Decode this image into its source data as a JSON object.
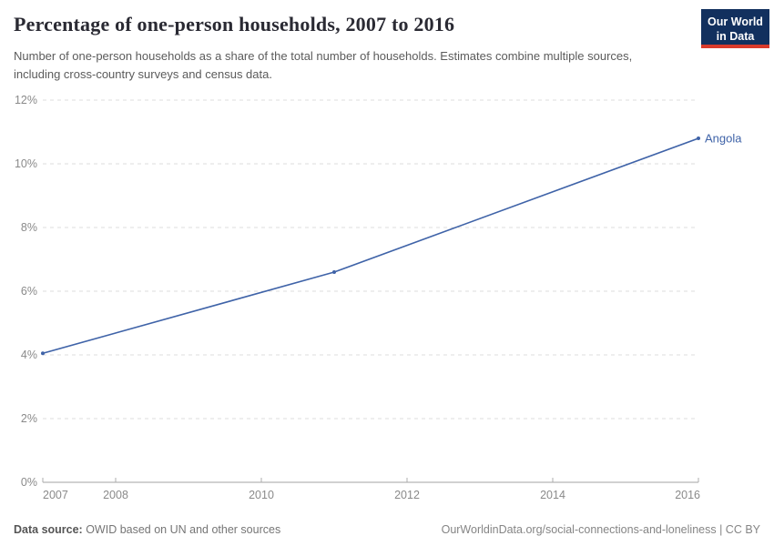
{
  "header": {
    "title": "Percentage of one-person households, 2007 to 2016",
    "subtitle": "Number of one-person households as a share of the total number of households. Estimates combine multiple sources, including cross-country surveys and census data.",
    "logo": {
      "line1": "Our World",
      "line2": "in Data",
      "bg_color": "#12305e",
      "accent_color": "#d93a2b"
    }
  },
  "chart_data": {
    "type": "line",
    "title": "Percentage of one-person households, 2007 to 2016",
    "xlabel": "",
    "ylabel": "",
    "x": {
      "range": [
        2007,
        2016
      ],
      "ticks": [
        2007,
        2008,
        2010,
        2012,
        2014,
        2016
      ]
    },
    "y": {
      "range": [
        0,
        12
      ],
      "ticks": [
        0,
        2,
        4,
        6,
        8,
        10,
        12
      ],
      "tick_suffix": "%",
      "gridlines": "dashed"
    },
    "series": [
      {
        "name": "Angola",
        "color": "#3f63a8",
        "points": [
          {
            "x": 2007,
            "y": 4.05
          },
          {
            "x": 2011,
            "y": 6.6
          },
          {
            "x": 2016,
            "y": 10.8
          }
        ]
      }
    ],
    "legend_position": "end-of-line-label",
    "grid_color": "#dddddd",
    "axis_label_color": "#8a8a8a"
  },
  "footer": {
    "source_label": "Data source:",
    "source_text": " OWID based on UN and other sources",
    "citation": "OurWorldinData.org/social-connections-and-loneliness | CC BY"
  }
}
